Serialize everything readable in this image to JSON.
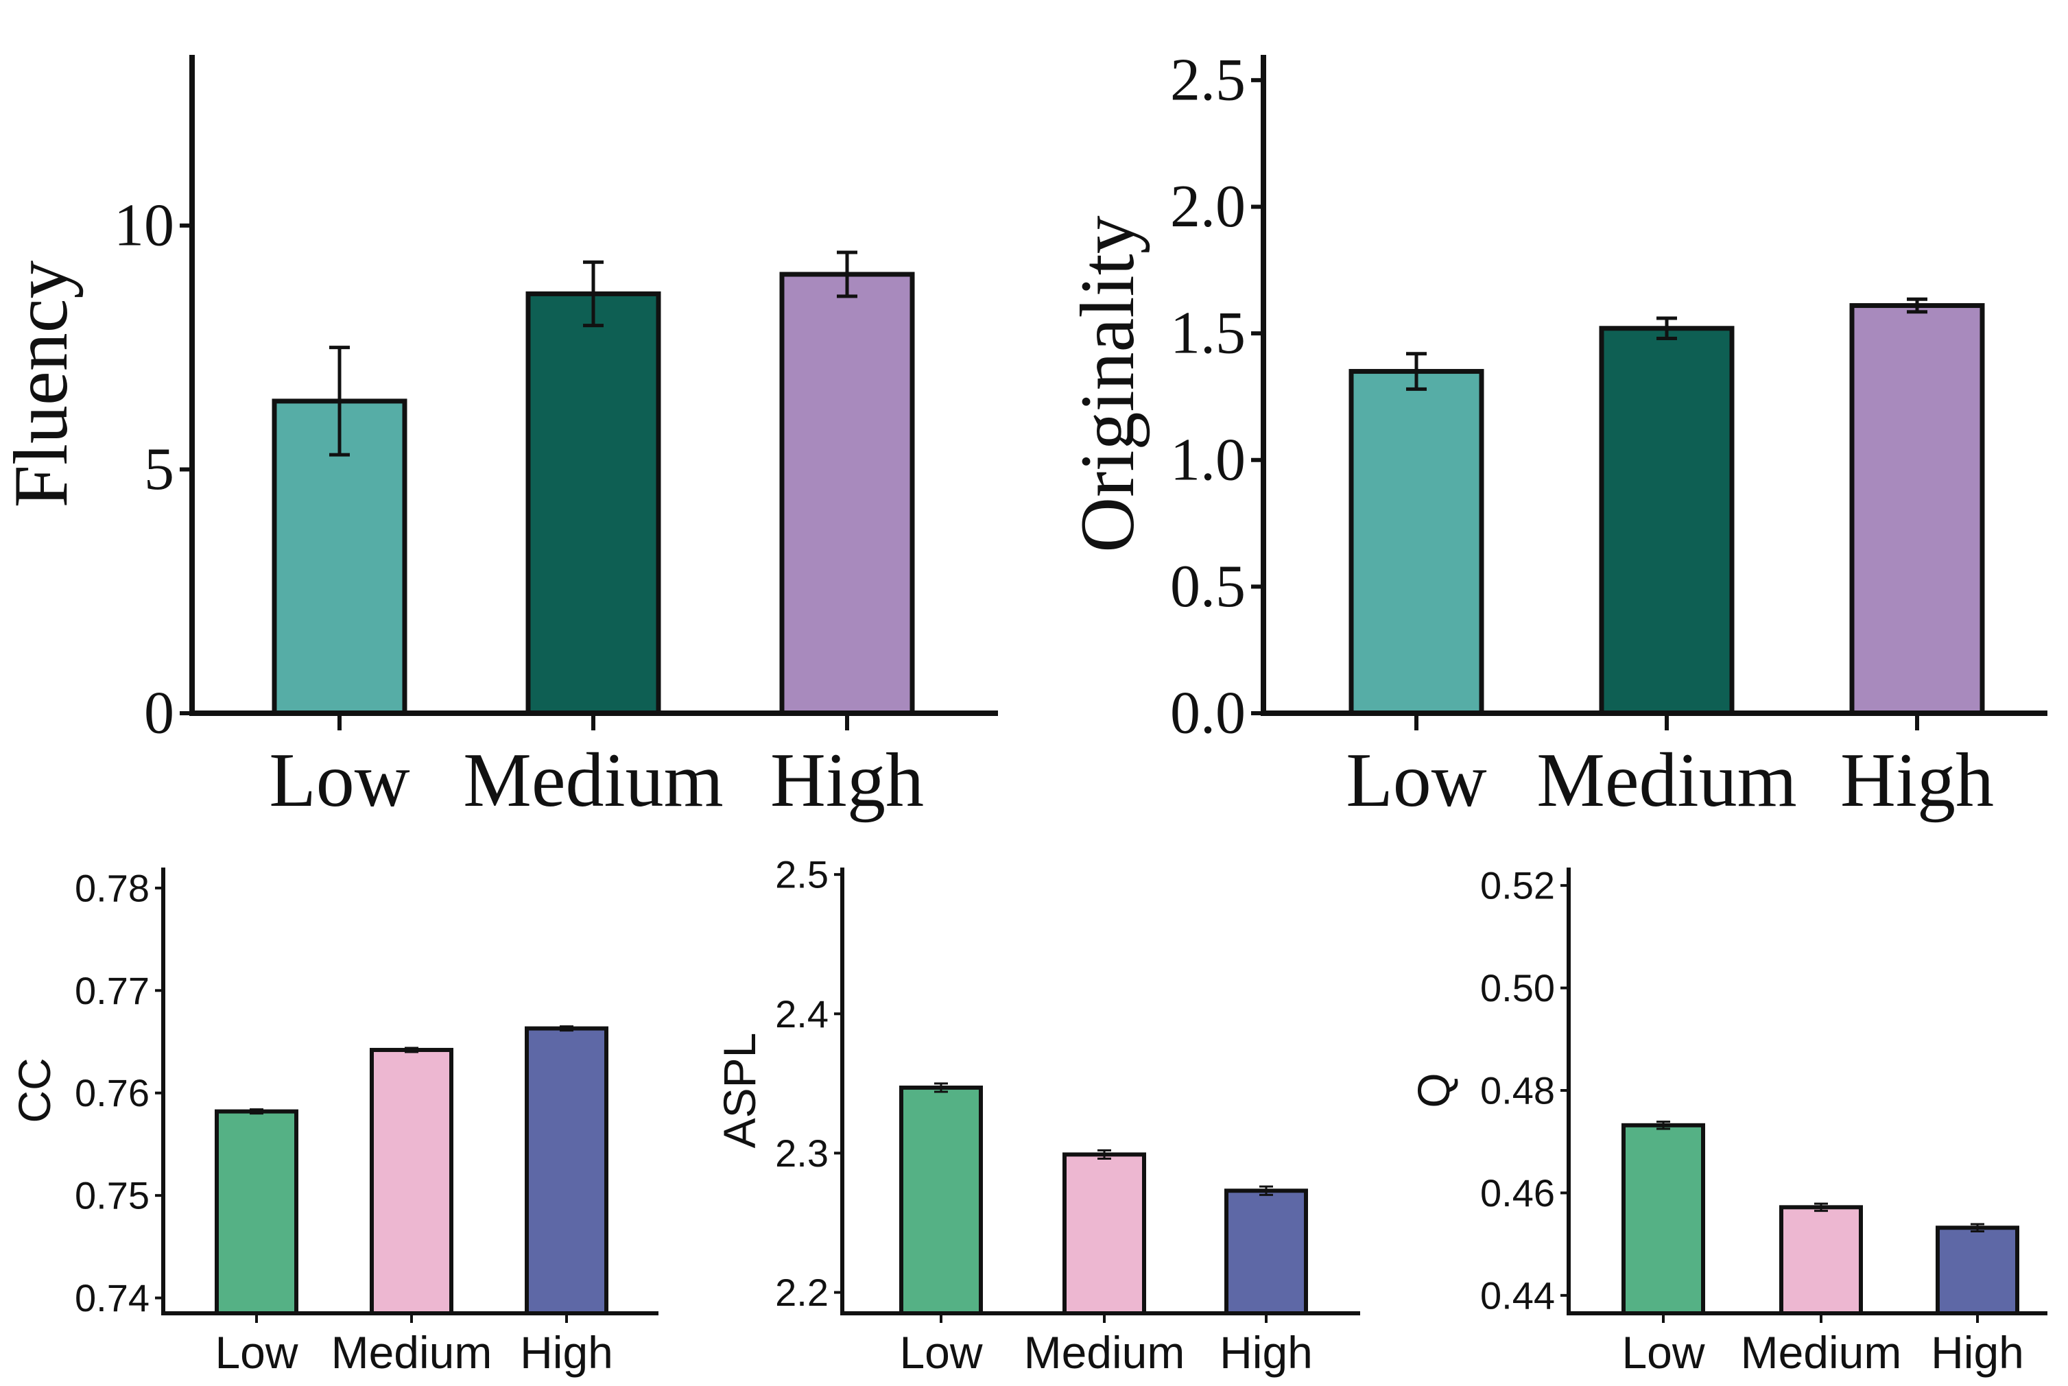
{
  "chart_data": [
    {
      "id": "fluency",
      "type": "bar",
      "style": "serif",
      "title": "",
      "xlabel": "",
      "ylabel": "Fluency",
      "categories": [
        "Low",
        "Medium",
        "High"
      ],
      "values": [
        6.4,
        8.6,
        9.0
      ],
      "errors": [
        1.1,
        0.65,
        0.45
      ],
      "colors": [
        "#56ada6",
        "#0e5f53",
        "#a88abd"
      ],
      "ylim": [
        0,
        13.5
      ],
      "yticks": [
        0,
        5,
        10
      ],
      "ytick_labels": [
        "0",
        "5",
        "10"
      ],
      "grid": false
    },
    {
      "id": "originality",
      "type": "bar",
      "style": "serif",
      "title": "",
      "xlabel": "",
      "ylabel": "Originality",
      "categories": [
        "Low",
        "Medium",
        "High"
      ],
      "values": [
        1.35,
        1.52,
        1.61
      ],
      "errors": [
        0.07,
        0.04,
        0.025
      ],
      "colors": [
        "#56ada6",
        "#0e5f53",
        "#a88abd"
      ],
      "ylim": [
        0,
        2.6
      ],
      "yticks": [
        0,
        0.5,
        1.0,
        1.5,
        2.0,
        2.5
      ],
      "ytick_labels": [
        "0.0",
        "0.5",
        "1.0",
        "1.5",
        "2.0",
        "2.5"
      ],
      "grid": false
    },
    {
      "id": "cc",
      "type": "bar",
      "style": "sans",
      "title": "",
      "xlabel": "",
      "ylabel": "CC",
      "categories": [
        "Low",
        "Medium",
        "High"
      ],
      "values": [
        0.7582,
        0.7642,
        0.7663
      ],
      "errors": [
        0.0002,
        0.0002,
        0.0002
      ],
      "colors": [
        "#55b185",
        "#edb7d1",
        "#5e68a6"
      ],
      "ylim": [
        0.7385,
        0.782
      ],
      "yticks": [
        0.74,
        0.75,
        0.76,
        0.77,
        0.78
      ],
      "ytick_labels": [
        "0.74",
        "0.75",
        "0.76",
        "0.77",
        "0.78"
      ],
      "grid": false
    },
    {
      "id": "aspl",
      "type": "bar",
      "style": "sans",
      "title": "",
      "xlabel": "",
      "ylabel": "ASPL",
      "categories": [
        "Low",
        "Medium",
        "High"
      ],
      "values": [
        2.347,
        2.299,
        2.273
      ],
      "errors": [
        0.003,
        0.003,
        0.003
      ],
      "colors": [
        "#55b185",
        "#edb7d1",
        "#5e68a6"
      ],
      "ylim": [
        2.185,
        2.505
      ],
      "yticks": [
        2.2,
        2.3,
        2.4,
        2.5
      ],
      "ytick_labels": [
        "2.2",
        "2.3",
        "2.4",
        "2.5"
      ],
      "grid": false
    },
    {
      "id": "q",
      "type": "bar",
      "style": "sans",
      "title": "",
      "xlabel": "",
      "ylabel": "Q",
      "categories": [
        "Low",
        "Medium",
        "High"
      ],
      "values": [
        0.4732,
        0.4572,
        0.4532
      ],
      "errors": [
        0.0007,
        0.0007,
        0.0007
      ],
      "colors": [
        "#55b185",
        "#edb7d1",
        "#5e68a6"
      ],
      "ylim": [
        0.4365,
        0.5235
      ],
      "yticks": [
        0.44,
        0.46,
        0.48,
        0.5,
        0.52
      ],
      "ytick_labels": [
        "0.44",
        "0.46",
        "0.48",
        "0.50",
        "0.52"
      ],
      "grid": false
    }
  ]
}
